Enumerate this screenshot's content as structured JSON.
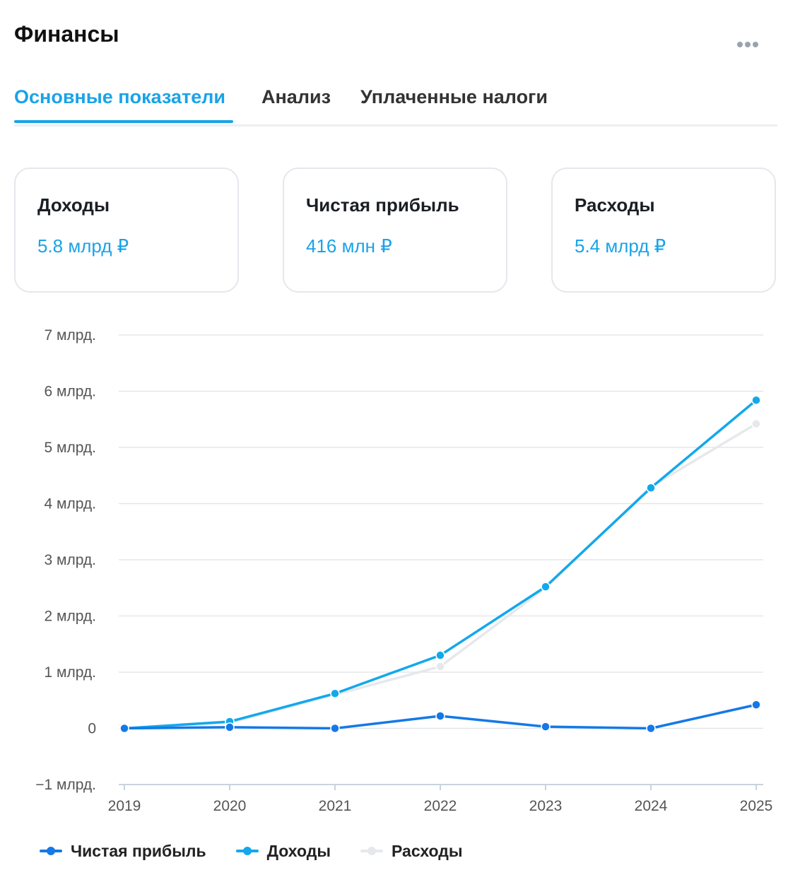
{
  "header": {
    "title": "Финансы",
    "more_icon": "more-dots-icon"
  },
  "tabs": [
    {
      "label": "Основные показатели",
      "active": true
    },
    {
      "label": "Анализ",
      "active": false
    },
    {
      "label": "Уплаченные налоги",
      "active": false
    }
  ],
  "cards": [
    {
      "label": "Доходы",
      "value": "5.8 млрд ₽"
    },
    {
      "label": "Чистая прибыль",
      "value": "416 млн ₽"
    },
    {
      "label": "Расходы",
      "value": "5.4 млрд ₽"
    }
  ],
  "colors": {
    "accent": "#1aa3e8",
    "net_profit": "#1479e6",
    "income": "#12a8ec",
    "expenses": "#e6e8eb"
  },
  "chart_data": {
    "type": "line",
    "x": [
      "2019",
      "2020",
      "2021",
      "2022",
      "2023",
      "2024",
      "2025"
    ],
    "ylim": [
      -1,
      7
    ],
    "yticks": [
      {
        "value": 7,
        "label": "7 млрд."
      },
      {
        "value": 6,
        "label": "6 млрд."
      },
      {
        "value": 5,
        "label": "5 млрд."
      },
      {
        "value": 4,
        "label": "4 млрд."
      },
      {
        "value": 3,
        "label": "3 млрд."
      },
      {
        "value": 2,
        "label": "2 млрд."
      },
      {
        "value": 1,
        "label": "1 млрд."
      },
      {
        "value": 0,
        "label": "0"
      },
      {
        "value": -1,
        "label": "−1 млрд."
      }
    ],
    "grid": true,
    "legend_position": "bottom-left",
    "series": [
      {
        "name": "Расходы",
        "color": "#e6e8eb",
        "values": [
          0.0,
          0.1,
          0.6,
          1.1,
          2.5,
          4.3,
          5.42
        ]
      },
      {
        "name": "Доходы",
        "color": "#12a8ec",
        "values": [
          0.0,
          0.12,
          0.62,
          1.3,
          2.52,
          4.28,
          5.84
        ]
      },
      {
        "name": "Чистая прибыль",
        "color": "#1479e6",
        "values": [
          0.0,
          0.02,
          0.0,
          0.22,
          0.03,
          0.0,
          0.42
        ]
      }
    ],
    "legend": [
      {
        "name": "Чистая прибыль",
        "color": "#1479e6"
      },
      {
        "name": "Доходы",
        "color": "#12a8ec"
      },
      {
        "name": "Расходы",
        "color": "#e6e8eb"
      }
    ]
  }
}
